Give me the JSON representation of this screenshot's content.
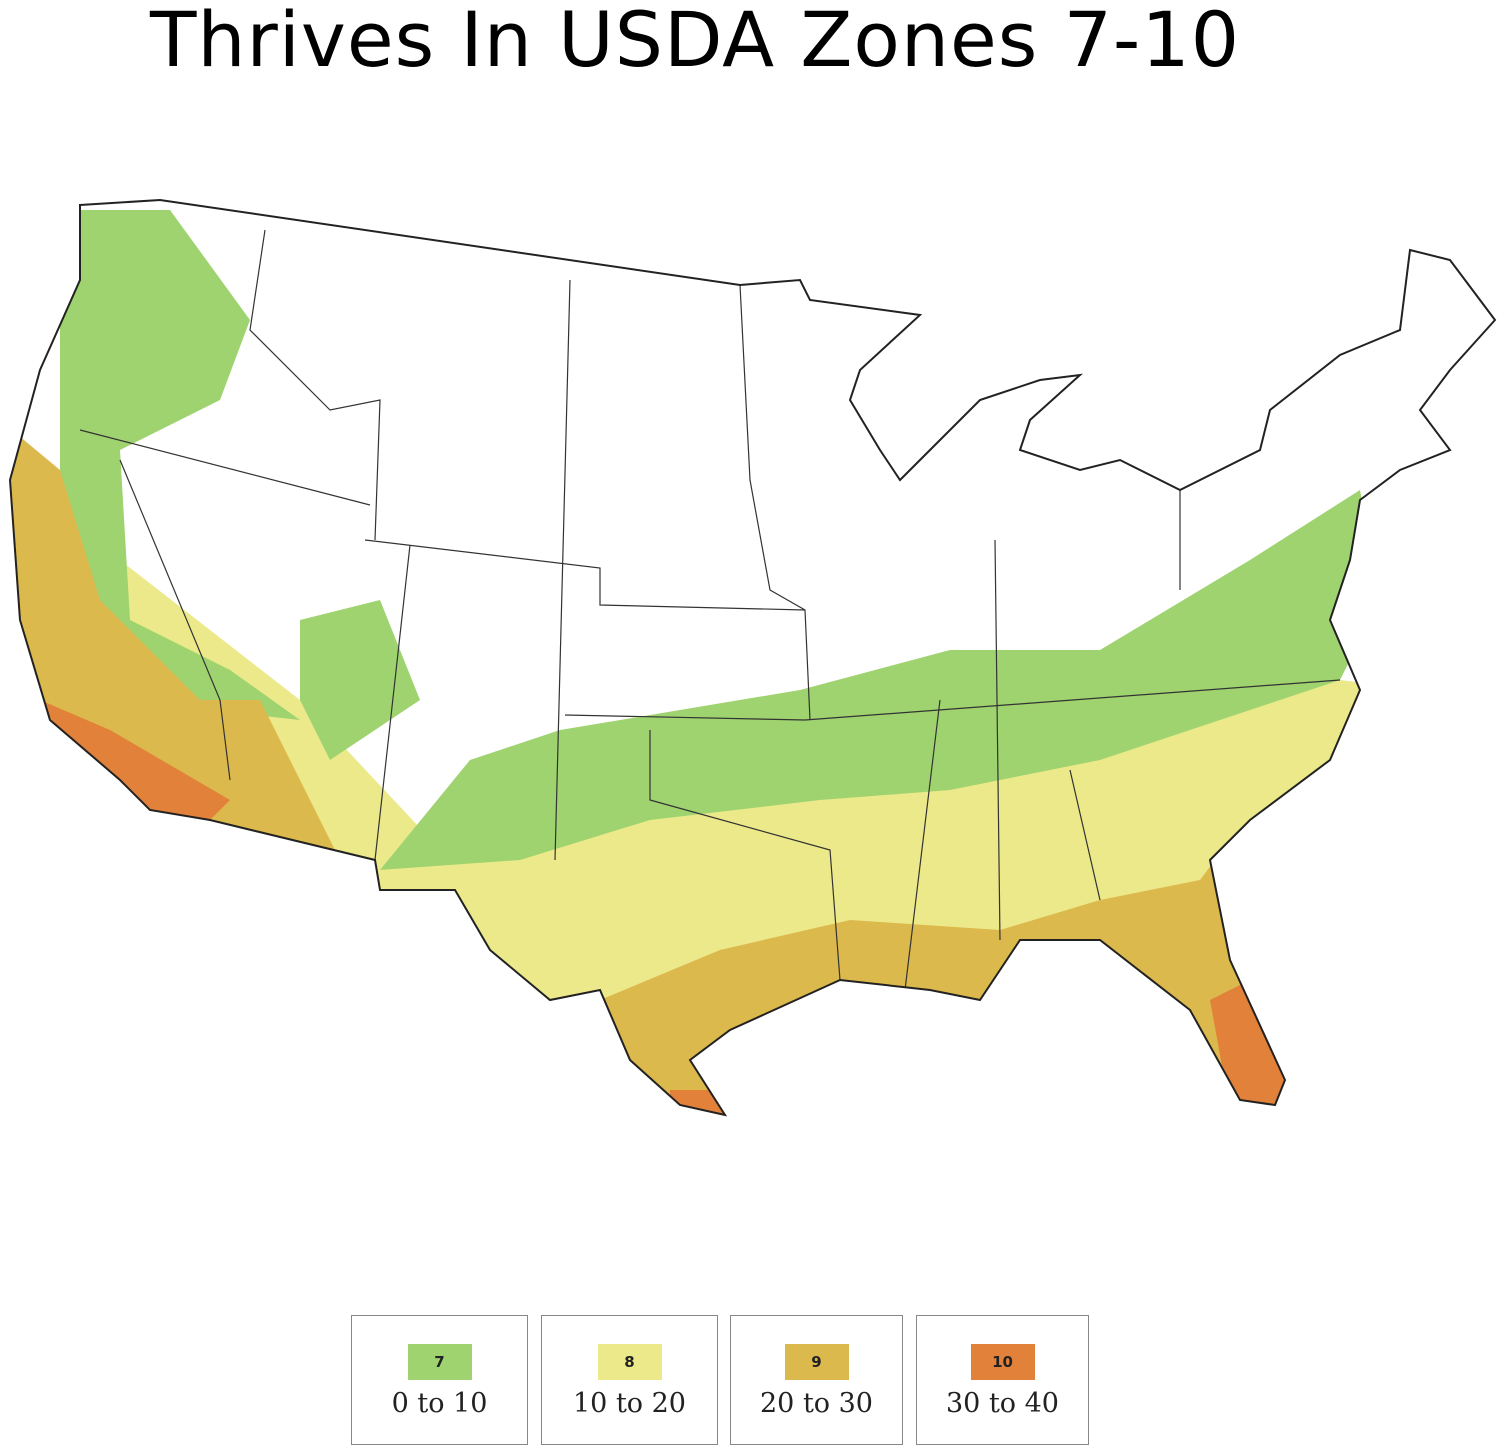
{
  "title": "Thrives In USDA Zones 7-10",
  "legend": [
    {
      "zone": "7",
      "range": "0 to 10",
      "color": "#9ed36f"
    },
    {
      "zone": "8",
      "range": "10 to 20",
      "color": "#ece98a"
    },
    {
      "zone": "9",
      "range": "20 to 30",
      "color": "#dcb94c"
    },
    {
      "zone": "10",
      "range": "30 to 40",
      "color": "#e2813a"
    }
  ]
}
